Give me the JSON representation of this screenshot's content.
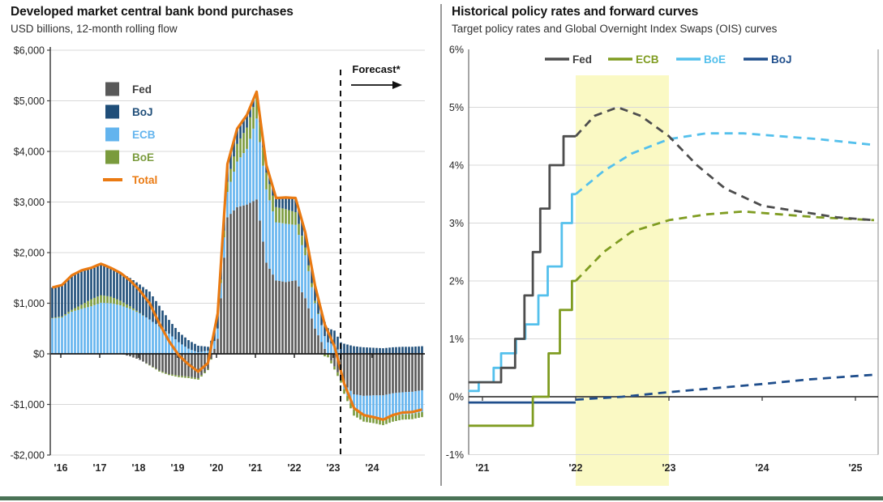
{
  "page": {
    "divider_color": "#9a9a9a",
    "footer_bar_color": "#4A7356",
    "background": "#ffffff"
  },
  "chart_data": [
    {
      "type": "bar",
      "stacked": true,
      "title": "Developed market central bank bond purchases",
      "subtitle": "USD billions, 12-month rolling flow",
      "annotation": "Forecast*",
      "ylabel": "USD billions",
      "ylim": [
        -2000,
        6000
      ],
      "grid": true,
      "legend_position": "upper-left-inside",
      "time_note": "quarterly anchors from Oct-2015 (index 0) then Q1-2016 .. Q2-2025, rendered as monthly bars",
      "x_tick_labels": [
        "'16",
        "'17",
        "'18",
        "'19",
        "'20",
        "'21",
        "'22",
        "'23",
        "'24"
      ],
      "y_ticks": [
        {
          "value": 6000,
          "label": "$6,000"
        },
        {
          "value": 5000,
          "label": "$5,000"
        },
        {
          "value": 4000,
          "label": "$4,000"
        },
        {
          "value": 3000,
          "label": "$3,000"
        },
        {
          "value": 2000,
          "label": "$2,000"
        },
        {
          "value": 1000,
          "label": "$1,000"
        },
        {
          "value": 0,
          "label": "$0"
        },
        {
          "value": -1000,
          "label": "-$1,000"
        },
        {
          "value": -2000,
          "label": "-$2,000"
        }
      ],
      "stack_order": [
        "Fed",
        "ECB",
        "BoE",
        "BoJ"
      ],
      "legend": [
        {
          "label": "Fed",
          "color": "#595959",
          "swatch": "box"
        },
        {
          "label": "BoJ",
          "color": "#1F4E79",
          "swatch": "box"
        },
        {
          "label": "ECB",
          "color": "#63B4EE",
          "swatch": "box"
        },
        {
          "label": "BoE",
          "color": "#7A9B3D",
          "swatch": "box"
        },
        {
          "label": "Total",
          "color": "#EA7A12",
          "swatch": "line"
        }
      ],
      "series": [
        {
          "name": "Fed",
          "color": "#595959",
          "values": [
            0,
            0,
            0,
            0,
            0,
            0,
            0,
            0,
            -50,
            -120,
            -220,
            -330,
            -400,
            -430,
            -450,
            -480,
            -300,
            300,
            2700,
            2900,
            2950,
            3050,
            1800,
            1450,
            1420,
            1450,
            1100,
            500,
            100,
            -250,
            -600,
            -800,
            -830,
            -820,
            -820,
            -780,
            -760,
            -750,
            -720
          ]
        },
        {
          "name": "ECB",
          "color": "#63B4EE",
          "values": [
            700,
            720,
            830,
            890,
            940,
            1010,
            1000,
            960,
            890,
            800,
            680,
            540,
            400,
            230,
            100,
            30,
            60,
            200,
            500,
            900,
            1100,
            1600,
            1450,
            1150,
            1150,
            1100,
            850,
            500,
            250,
            180,
            -100,
            -300,
            -380,
            -420,
            -470,
            -450,
            -440,
            -440,
            -430
          ]
        },
        {
          "name": "BoE",
          "color": "#7A9B3D",
          "values": [
            10,
            20,
            40,
            80,
            140,
            150,
            130,
            90,
            50,
            10,
            -10,
            -20,
            -20,
            -30,
            -30,
            -30,
            -20,
            0,
            200,
            350,
            420,
            430,
            330,
            300,
            290,
            250,
            150,
            50,
            -50,
            -60,
            -90,
            -120,
            -130,
            -130,
            -120,
            -110,
            -100,
            -100,
            -100
          ]
        },
        {
          "name": "BoJ",
          "color": "#1F4E79",
          "values": [
            600,
            620,
            680,
            680,
            620,
            620,
            570,
            550,
            560,
            560,
            550,
            410,
            270,
            200,
            170,
            130,
            80,
            300,
            350,
            300,
            250,
            100,
            150,
            180,
            230,
            280,
            300,
            300,
            280,
            280,
            200,
            150,
            130,
            120,
            110,
            130,
            140,
            140,
            150
          ]
        }
      ],
      "total_line": {
        "name": "Total",
        "color": "#EA7A12",
        "values": [
          1310,
          1360,
          1550,
          1650,
          1700,
          1780,
          1700,
          1600,
          1450,
          1250,
          1000,
          600,
          250,
          -30,
          -210,
          -350,
          -180,
          800,
          3750,
          4450,
          4720,
          5180,
          3730,
          3080,
          3090,
          3080,
          2400,
          1350,
          580,
          150,
          -590,
          -1070,
          -1210,
          -1250,
          -1300,
          -1210,
          -1160,
          -1150,
          -1100
        ]
      },
      "forecast_divider": {
        "style": "dashed-vertical",
        "at_label": "just after '23"
      }
    },
    {
      "type": "line",
      "title": "Historical policy rates and forward curves",
      "subtitle": "Target policy rates and Global Overnight Index Swaps (OIS) curves",
      "ylim": [
        -1,
        6
      ],
      "grid": true,
      "legend_position": "top-center",
      "x_note": "x units are years after the '21 tick; solid = historical policy rate, dashed = OIS forward curve",
      "x_tick_labels": [
        "'21",
        "'22",
        "'23",
        "'24",
        "'25"
      ],
      "y_ticks": [
        {
          "value": 6,
          "label": "6%"
        },
        {
          "value": 5,
          "label": "5%"
        },
        {
          "value": 4,
          "label": "4%"
        },
        {
          "value": 3,
          "label": "3%"
        },
        {
          "value": 2,
          "label": "2%"
        },
        {
          "value": 1,
          "label": "1%"
        },
        {
          "value": 0,
          "label": "0%"
        },
        {
          "value": -1,
          "label": "-1%"
        }
      ],
      "highlight_band": {
        "from_x": 1,
        "to_x": 2,
        "color": "#FAF9C4",
        "meaning": "year between '22 and '23 ticks"
      },
      "legend": [
        {
          "label": "Fed",
          "color": "#4D4D4D"
        },
        {
          "label": "ECB",
          "color": "#7F9C21"
        },
        {
          "label": "BoE",
          "color": "#54C0EC"
        },
        {
          "label": "BoJ",
          "color": "#1F4E8C"
        }
      ],
      "series": [
        {
          "name": "BoJ",
          "color": "#1F4E8C",
          "solid": [
            [
              -0.15,
              -0.1
            ],
            [
              1.0,
              -0.1
            ]
          ],
          "dashed": [
            [
              1.0,
              -0.05
            ],
            [
              1.5,
              0.0
            ],
            [
              2.0,
              0.08
            ],
            [
              2.5,
              0.15
            ],
            [
              3.0,
              0.22
            ],
            [
              3.5,
              0.3
            ],
            [
              4.2,
              0.38
            ]
          ]
        },
        {
          "name": "ECB",
          "color": "#7F9C21",
          "solid": [
            [
              -0.15,
              -0.5
            ],
            [
              0.54,
              -0.5
            ],
            [
              0.54,
              0.0
            ],
            [
              0.71,
              0.0
            ],
            [
              0.71,
              0.75
            ],
            [
              0.83,
              0.75
            ],
            [
              0.83,
              1.5
            ],
            [
              0.96,
              1.5
            ],
            [
              0.96,
              2.0
            ],
            [
              1.0,
              2.0
            ]
          ],
          "dashed": [
            [
              1.0,
              2.0
            ],
            [
              1.3,
              2.5
            ],
            [
              1.6,
              2.85
            ],
            [
              2.0,
              3.05
            ],
            [
              2.4,
              3.15
            ],
            [
              2.8,
              3.2
            ],
            [
              3.2,
              3.15
            ],
            [
              3.6,
              3.1
            ],
            [
              4.2,
              3.05
            ]
          ]
        },
        {
          "name": "BoE",
          "color": "#54C0EC",
          "solid": [
            [
              -0.15,
              0.1
            ],
            [
              -0.04,
              0.1
            ],
            [
              -0.04,
              0.25
            ],
            [
              0.12,
              0.25
            ],
            [
              0.12,
              0.5
            ],
            [
              0.2,
              0.5
            ],
            [
              0.2,
              0.75
            ],
            [
              0.36,
              0.75
            ],
            [
              0.36,
              1.0
            ],
            [
              0.46,
              1.0
            ],
            [
              0.46,
              1.25
            ],
            [
              0.6,
              1.25
            ],
            [
              0.6,
              1.75
            ],
            [
              0.7,
              1.75
            ],
            [
              0.7,
              2.25
            ],
            [
              0.85,
              2.25
            ],
            [
              0.85,
              3.0
            ],
            [
              0.96,
              3.0
            ],
            [
              0.96,
              3.5
            ],
            [
              1.0,
              3.5
            ]
          ],
          "dashed": [
            [
              1.0,
              3.5
            ],
            [
              1.3,
              3.9
            ],
            [
              1.6,
              4.2
            ],
            [
              2.0,
              4.45
            ],
            [
              2.4,
              4.55
            ],
            [
              2.8,
              4.55
            ],
            [
              3.2,
              4.5
            ],
            [
              3.6,
              4.45
            ],
            [
              4.2,
              4.35
            ]
          ]
        },
        {
          "name": "Fed",
          "color": "#4D4D4D",
          "solid": [
            [
              -0.15,
              0.25
            ],
            [
              0.2,
              0.25
            ],
            [
              0.2,
              0.5
            ],
            [
              0.35,
              0.5
            ],
            [
              0.35,
              1.0
            ],
            [
              0.45,
              1.0
            ],
            [
              0.45,
              1.75
            ],
            [
              0.54,
              1.75
            ],
            [
              0.54,
              2.5
            ],
            [
              0.62,
              2.5
            ],
            [
              0.62,
              3.25
            ],
            [
              0.72,
              3.25
            ],
            [
              0.72,
              4.0
            ],
            [
              0.87,
              4.0
            ],
            [
              0.87,
              4.5
            ],
            [
              1.0,
              4.5
            ]
          ],
          "dashed": [
            [
              1.0,
              4.5
            ],
            [
              1.2,
              4.85
            ],
            [
              1.45,
              5.0
            ],
            [
              1.7,
              4.85
            ],
            [
              2.0,
              4.5
            ],
            [
              2.3,
              4.0
            ],
            [
              2.6,
              3.6
            ],
            [
              3.0,
              3.3
            ],
            [
              3.4,
              3.2
            ],
            [
              3.8,
              3.1
            ],
            [
              4.2,
              3.05
            ]
          ]
        }
      ]
    }
  ],
  "style": {
    "grid_color": "#D8D8D8",
    "axis_color": "#3C3C3C",
    "tick_label_color": "#262626"
  }
}
